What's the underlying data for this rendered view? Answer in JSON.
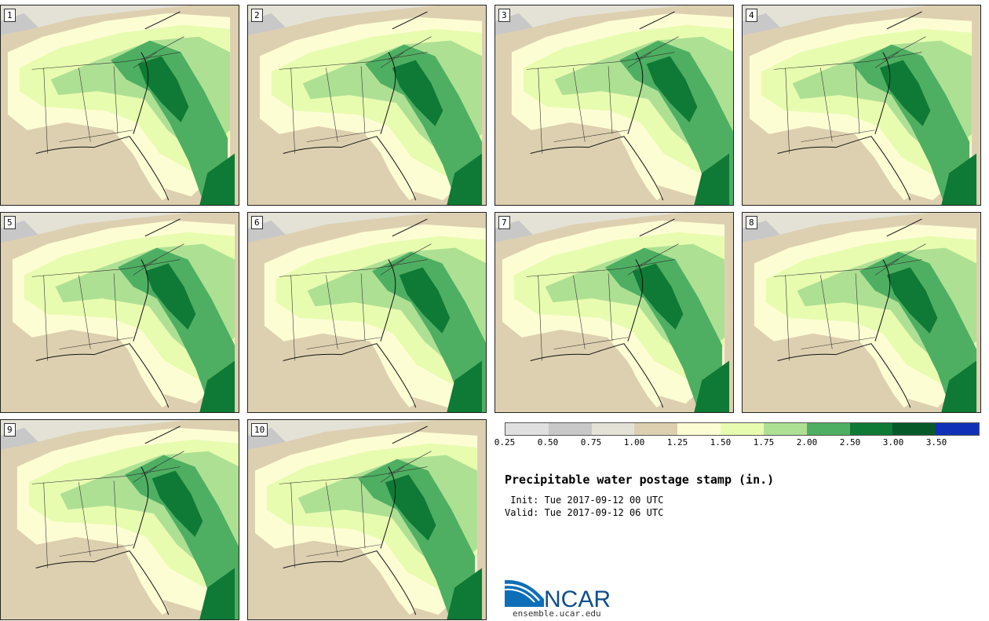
{
  "panels": [
    {
      "label": "1"
    },
    {
      "label": "2"
    },
    {
      "label": "3"
    },
    {
      "label": "4"
    },
    {
      "label": "5"
    },
    {
      "label": "6"
    },
    {
      "label": "7"
    },
    {
      "label": "8"
    },
    {
      "label": "9"
    },
    {
      "label": "10"
    }
  ],
  "legend": {
    "colors": [
      "#e0e0e0",
      "#c8c8c8",
      "#e4e2d6",
      "#ddd0b0",
      "#fdfdd4",
      "#e8fcb0",
      "#aee094",
      "#4eaf62",
      "#0f7a35",
      "#07592a",
      "#1030b8"
    ],
    "ticks": [
      "0.25",
      "0.50",
      "0.75",
      "1.00",
      "1.25",
      "1.50",
      "1.75",
      "2.00",
      "2.50",
      "3.00",
      "3.50"
    ]
  },
  "title": "Precipitable water postage stamp (in.)",
  "init": " Init: Tue 2017-09-12 00 UTC",
  "valid": "Valid: Tue 2017-09-12 06 UTC",
  "logo": {
    "name": "ncar-logo",
    "text": "NCAR",
    "url": "ensemble.ucar.edu"
  }
}
